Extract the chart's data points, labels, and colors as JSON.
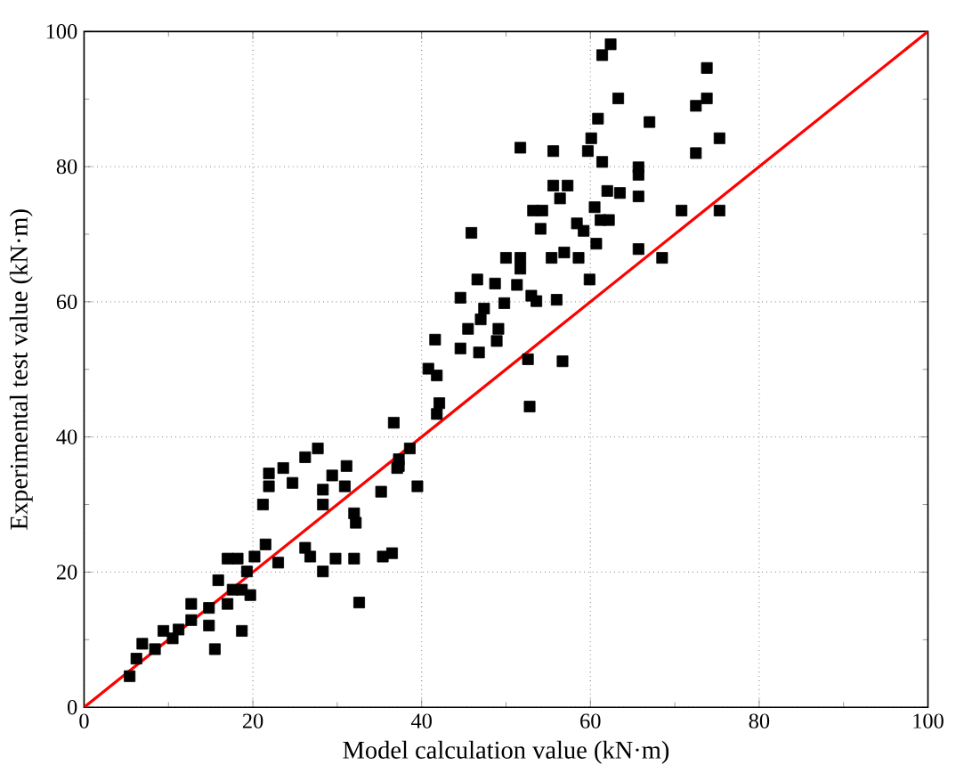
{
  "chart_data": {
    "type": "scatter",
    "xlabel": "Model calculation value (kN·m)",
    "ylabel": "Experimental test value (kN·m)",
    "xlim": [
      0,
      100
    ],
    "ylim": [
      0,
      100
    ],
    "xticks": [
      0,
      20,
      40,
      60,
      80,
      100
    ],
    "yticks": [
      0,
      20,
      40,
      60,
      80,
      100
    ],
    "grid": true,
    "marker": "square",
    "series": [
      {
        "color": "#000000",
        "x": [
          62.4,
          61.4,
          73.8,
          63.3,
          73.8,
          72.5,
          60.9,
          67.0,
          75.3,
          60.1,
          51.7,
          55.6,
          59.7,
          72.5,
          61.4,
          65.7,
          65.7,
          55.6,
          57.3,
          56.4,
          62.0,
          63.5,
          65.7,
          53.2,
          54.3,
          60.5,
          70.8,
          75.3,
          61.2,
          62.2,
          58.4,
          59.2,
          54.1,
          45.9,
          60.7,
          65.7,
          68.5,
          50.0,
          51.7,
          51.7,
          55.4,
          56.9,
          58.6,
          46.6,
          48.7,
          51.3,
          59.9,
          44.6,
          49.8,
          53.0,
          53.6,
          56.0,
          47.4,
          47.0,
          45.5,
          49.1,
          41.6,
          48.9,
          44.6,
          46.8,
          52.6,
          56.7,
          40.8,
          41.8,
          52.8,
          42.1,
          41.8,
          36.7,
          38.6,
          37.3,
          37.1,
          27.7,
          23.6,
          26.2,
          21.9,
          29.4,
          31.1,
          21.9,
          24.7,
          28.3,
          30.9,
          21.2,
          28.3,
          32.0,
          35.2,
          32.2,
          39.5,
          37.3,
          21.5,
          26.2,
          23.0,
          29.8,
          32.0,
          28.3,
          32.6,
          35.4,
          36.5,
          26.8,
          18.2,
          17.0,
          15.9,
          18.7,
          15.5,
          18.7,
          19.7,
          12.7,
          9.4,
          6.9,
          5.4,
          6.2,
          11.2,
          8.4,
          12.7,
          14.8,
          10.5,
          17.0,
          14.8,
          19.3,
          20.2,
          17.6
        ],
        "values": [
          98.1,
          96.5,
          94.6,
          90.1,
          90.1,
          89.0,
          87.1,
          86.6,
          84.2,
          84.2,
          82.8,
          82.3,
          82.3,
          82.0,
          80.7,
          79.9,
          78.8,
          77.2,
          77.2,
          75.3,
          76.4,
          76.1,
          75.6,
          73.5,
          73.5,
          74.0,
          73.5,
          73.5,
          72.1,
          72.1,
          71.6,
          70.5,
          70.8,
          70.2,
          68.6,
          67.8,
          66.5,
          66.5,
          66.5,
          64.9,
          66.5,
          67.3,
          66.5,
          63.3,
          62.7,
          62.5,
          63.3,
          60.6,
          59.8,
          60.9,
          60.1,
          60.3,
          59.0,
          57.4,
          56.0,
          56.0,
          54.4,
          54.2,
          53.1,
          52.5,
          51.5,
          51.2,
          50.1,
          49.1,
          44.5,
          45.0,
          43.4,
          42.1,
          38.3,
          36.7,
          35.4,
          38.3,
          35.4,
          37.0,
          34.6,
          34.3,
          35.7,
          32.7,
          33.2,
          32.2,
          32.7,
          30.0,
          30.0,
          28.7,
          31.9,
          27.3,
          32.7,
          35.7,
          24.1,
          23.6,
          21.4,
          22.0,
          22.0,
          20.1,
          15.5,
          22.3,
          22.8,
          22.3,
          22.0,
          22.0,
          18.8,
          17.4,
          8.6,
          11.3,
          16.6,
          15.3,
          11.3,
          9.4,
          4.6,
          7.2,
          11.5,
          8.6,
          12.9,
          12.1,
          10.2,
          15.3,
          14.7,
          20.1,
          22.3,
          17.4
        ]
      },
      {
        "type": "line",
        "color": "#ff0000",
        "marker": "none",
        "x": [
          0,
          100
        ],
        "values": [
          0,
          100
        ]
      }
    ]
  }
}
